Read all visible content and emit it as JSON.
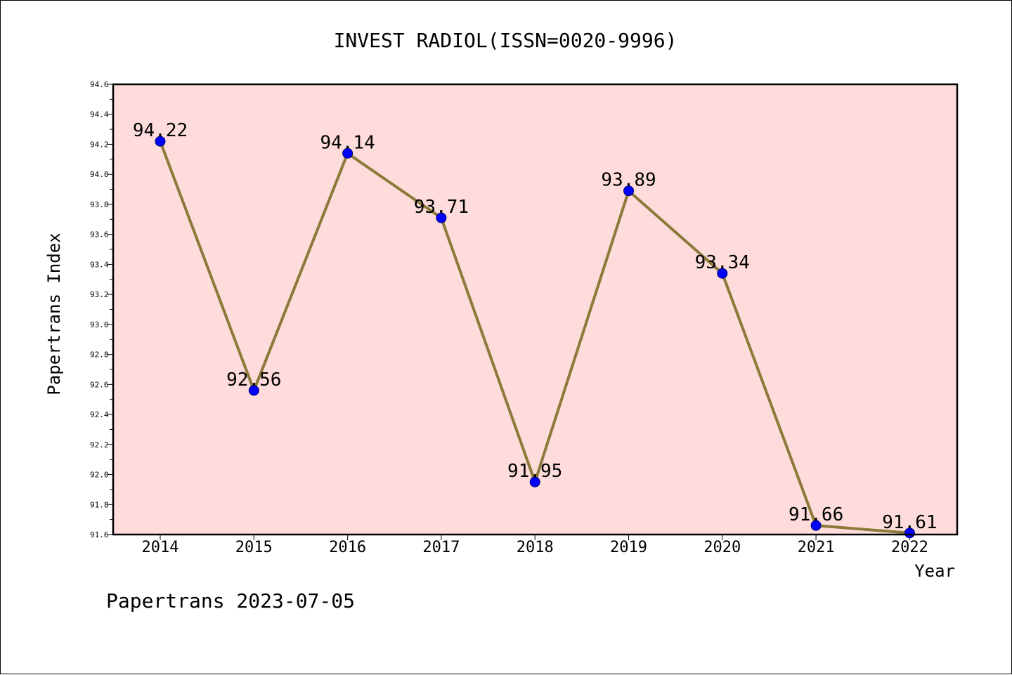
{
  "colors": {
    "plot_background": "#fddcdb",
    "line": "#8c7a3a",
    "marker": "#0000ff",
    "frame": "#000000"
  },
  "footer": "Papertrans 2023-07-05",
  "chart_data": {
    "type": "line",
    "title": "INVEST RADIOL(ISSN=0020-9996)",
    "xlabel": "Year",
    "ylabel": "Papertrans Index",
    "ylim": [
      91.6,
      94.6
    ],
    "yticks": [
      "91.6",
      "91.8",
      "92.0",
      "92.2",
      "92.4",
      "92.6",
      "92.8",
      "93.0",
      "93.2",
      "93.4",
      "93.6",
      "93.8",
      "94.0",
      "94.2",
      "94.4",
      "94.6"
    ],
    "categories": [
      "2014",
      "2015",
      "2016",
      "2017",
      "2018",
      "2019",
      "2020",
      "2021",
      "2022"
    ],
    "series": [
      {
        "values": [
          94.22,
          92.56,
          94.14,
          93.71,
          91.95,
          93.89,
          93.34,
          91.66,
          91.61
        ],
        "labels": [
          "94.22",
          "92.56",
          "94.14",
          "93.71",
          "91.95",
          "93.89",
          "93.34",
          "91.66",
          "91.61"
        ]
      }
    ],
    "grid": false,
    "legend": "none"
  }
}
